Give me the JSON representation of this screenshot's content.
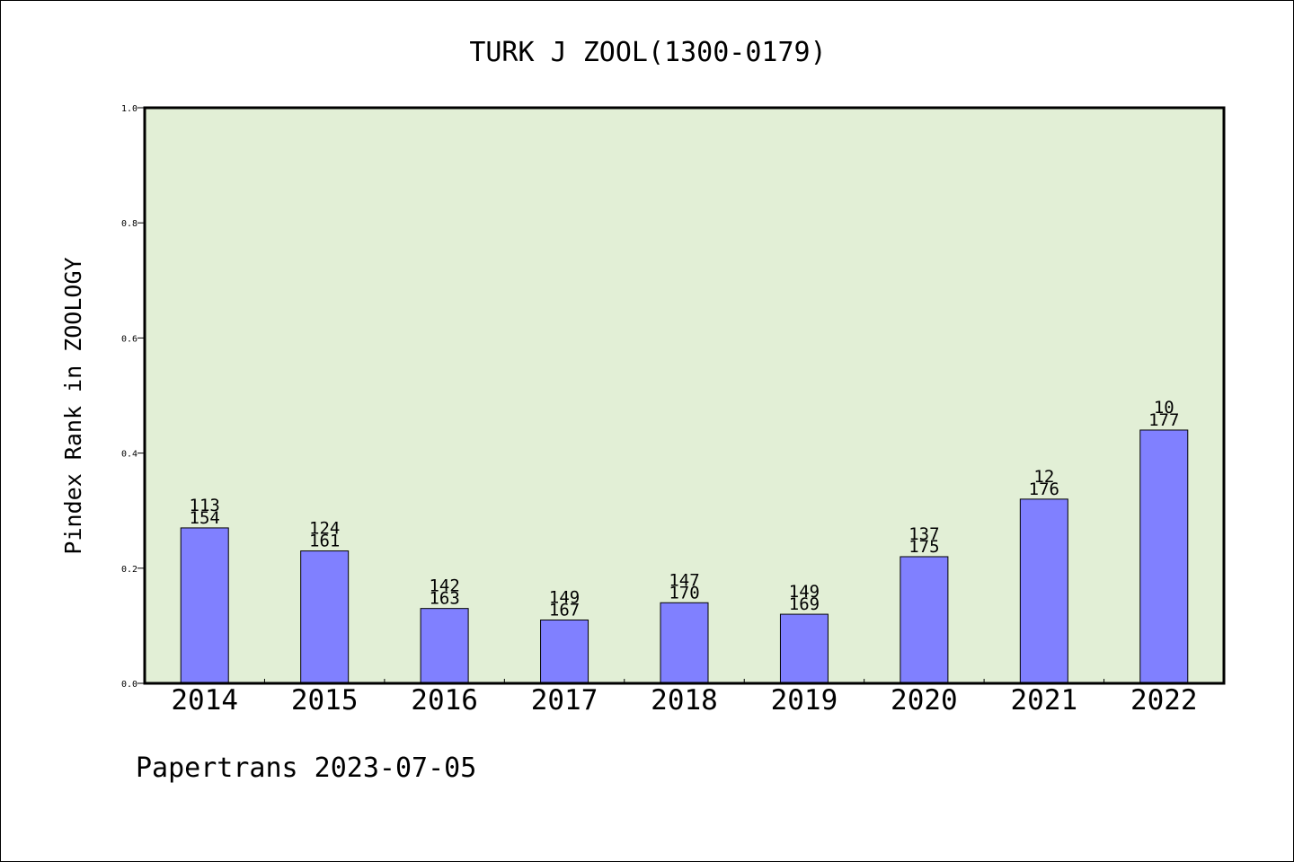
{
  "chart_data": {
    "type": "bar",
    "title": "TURK J ZOOL(1300-0179)",
    "xlabel": "",
    "ylabel": "Pindex Rank in ZOOLOGY",
    "ylim": [
      0.0,
      1.0
    ],
    "yticks": [
      "0.0",
      "0.2",
      "0.4",
      "0.6",
      "0.8",
      "1.0"
    ],
    "grid": false,
    "background_color": "#e2efd6",
    "bar_color": "#8080ff",
    "categories": [
      "2014",
      "2015",
      "2016",
      "2017",
      "2018",
      "2019",
      "2020",
      "2021",
      "2022"
    ],
    "values": [
      0.27,
      0.23,
      0.13,
      0.11,
      0.14,
      0.12,
      0.22,
      0.32,
      0.44
    ],
    "rank_labels": [
      "113",
      "124",
      "142",
      "149",
      "147",
      "149",
      "137",
      "12",
      "10"
    ],
    "total_labels": [
      "154",
      "161",
      "163",
      "167",
      "170",
      "169",
      "175",
      "176",
      "177"
    ]
  },
  "footer": "Papertrans 2023-07-05"
}
